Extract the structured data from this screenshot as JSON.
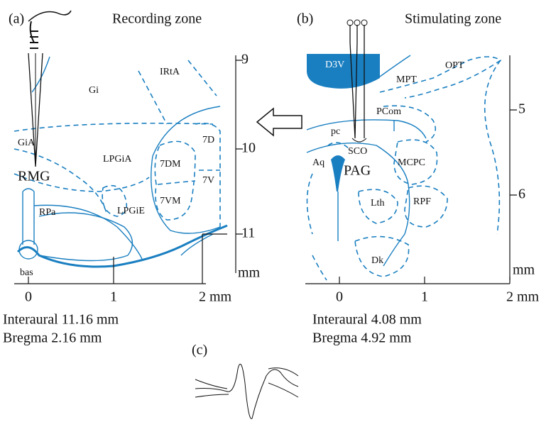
{
  "panels": {
    "a": {
      "label": "(a)",
      "title": "Recording zone",
      "regions": [
        "Gi",
        "IRtA",
        "GiA",
        "RMG",
        "LPGiA",
        "7DM",
        "7D",
        "7V",
        "7VM",
        "LPGiE",
        "RPa",
        "bas"
      ],
      "vertical_ticks": [
        9,
        10,
        11,
        "mm"
      ],
      "horizontal_ticks": [
        0,
        1,
        "2 mm"
      ],
      "captions": [
        "Interaural 11.16 mm",
        "Bregma 2.16 mm"
      ]
    },
    "b": {
      "label": "(b)",
      "title": "Stimulating zone",
      "regions": [
        "D3V",
        "MPT",
        "OPT",
        "PCom",
        "pc",
        "SCO",
        "Aq",
        "PAG",
        "MCPC",
        "Lth",
        "RPF",
        "Dk"
      ],
      "vertical_ticks": [
        5,
        6,
        "mm"
      ],
      "horizontal_ticks": [
        0,
        1,
        "2 mm"
      ],
      "captions": [
        "Interaural 4.08 mm",
        "Bregma 4.92 mm"
      ]
    },
    "c": {
      "label": "(c)"
    }
  }
}
